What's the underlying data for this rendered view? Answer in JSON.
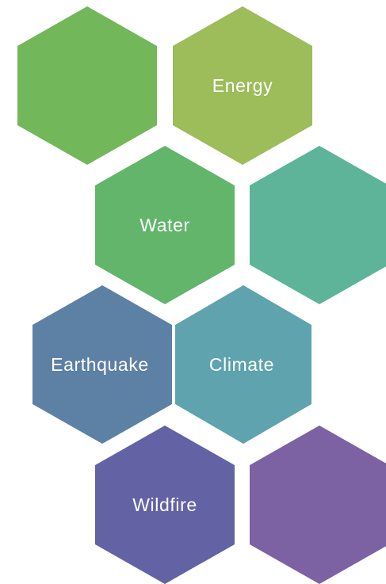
{
  "hexagons": [
    {
      "id": "hex-1",
      "label": "",
      "color": "#73b75b"
    },
    {
      "id": "hex-2",
      "label": "Energy",
      "color": "#9dbc5a"
    },
    {
      "id": "hex-3",
      "label": "Water",
      "color": "#62b56b"
    },
    {
      "id": "hex-4",
      "label": "",
      "color": "#5eb498"
    },
    {
      "id": "hex-5",
      "label": "Earthquake",
      "color": "#5d80a5"
    },
    {
      "id": "hex-6",
      "label": "Climate",
      "color": "#5ea3ad"
    },
    {
      "id": "hex-7",
      "label": "Wildfire",
      "color": "#6262a4"
    },
    {
      "id": "hex-8",
      "label": "",
      "color": "#7c62a3"
    }
  ]
}
